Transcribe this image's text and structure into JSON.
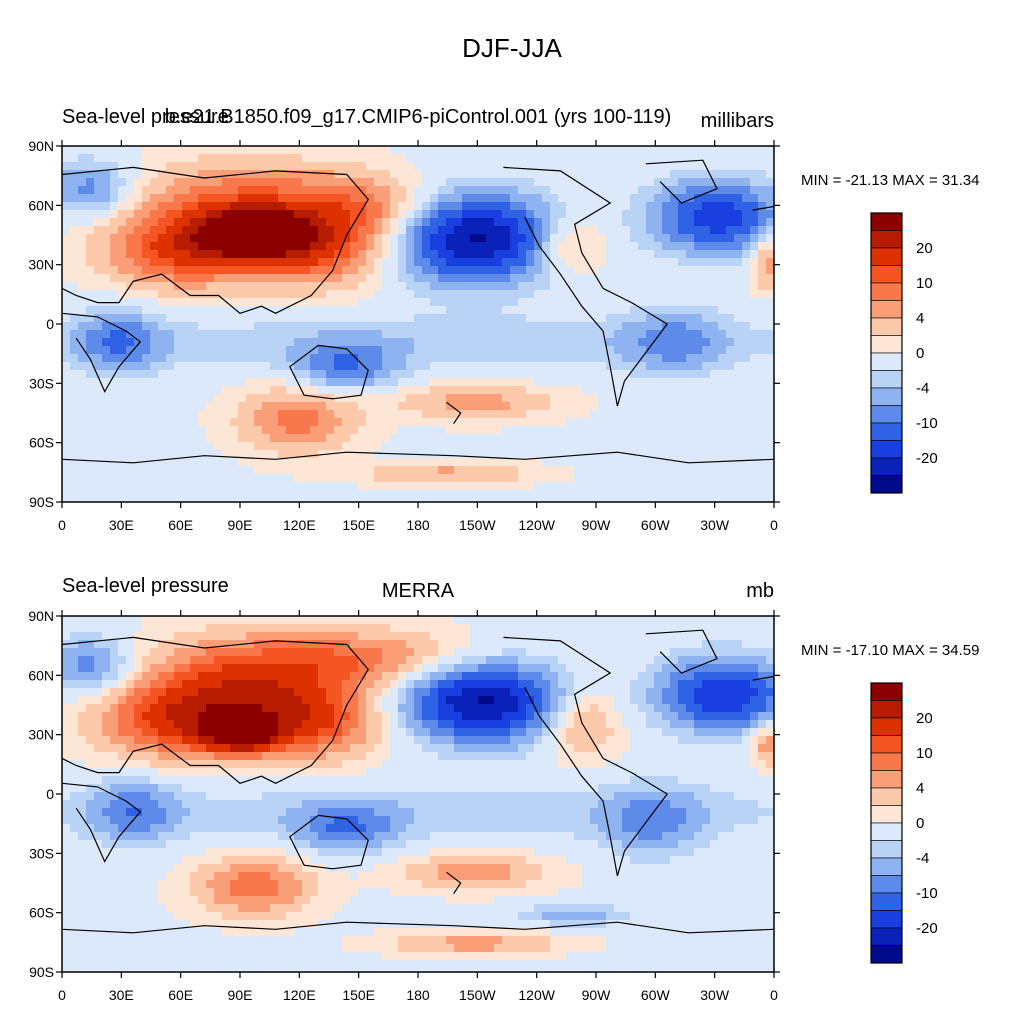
{
  "figure": {
    "title": "DJF-JJA"
  },
  "chart_data": [
    {
      "type": "heatmap",
      "title": "Sea-level pressure",
      "center_title": "b.e21.B1850.f09_g17.CMIP6-piControl.001 (yrs 100-119)",
      "units": "millibars",
      "stats": "MIN = -21.13 MAX =  31.34",
      "min": -21.13,
      "max": 31.34,
      "x_tick_labels": [
        "0",
        "30E",
        "60E",
        "90E",
        "120E",
        "150E",
        "180",
        "150W",
        "120W",
        "90W",
        "60W",
        "30W",
        "0"
      ],
      "y_tick_labels": [
        "90N",
        "60N",
        "30N",
        "0",
        "30S",
        "60S",
        "90S"
      ],
      "colorbar_labels": [
        "20",
        "10",
        "4",
        "0",
        "-4",
        "-10",
        "-20"
      ],
      "xlim": [
        0,
        360
      ],
      "ylim": [
        -90,
        90
      ]
    },
    {
      "type": "heatmap",
      "title": "Sea-level pressure",
      "center_title": "MERRA",
      "units": "mb",
      "stats": "MIN = -17.10 MAX =  34.59",
      "min": -17.1,
      "max": 34.59,
      "x_tick_labels": [
        "0",
        "30E",
        "60E",
        "90E",
        "120E",
        "150E",
        "180",
        "150W",
        "120W",
        "90W",
        "60W",
        "30W",
        "0"
      ],
      "y_tick_labels": [
        "90N",
        "60N",
        "30N",
        "0",
        "30S",
        "60S",
        "90S"
      ],
      "colorbar_labels": [
        "20",
        "10",
        "4",
        "0",
        "-4",
        "-10",
        "-20"
      ],
      "xlim": [
        0,
        360
      ],
      "ylim": [
        -90,
        90
      ]
    }
  ],
  "colors": {
    "levels": [
      "#8b0000",
      "#b51c00",
      "#dd3200",
      "#f45522",
      "#f8784c",
      "#fa9e78",
      "#fcc9aa",
      "#fde6d6",
      "#dbe9fb",
      "#b9d3f7",
      "#8fb2f0",
      "#5e8bea",
      "#2f62e4",
      "#1a3fe0",
      "#0a22b8",
      "#000a8a"
    ]
  }
}
